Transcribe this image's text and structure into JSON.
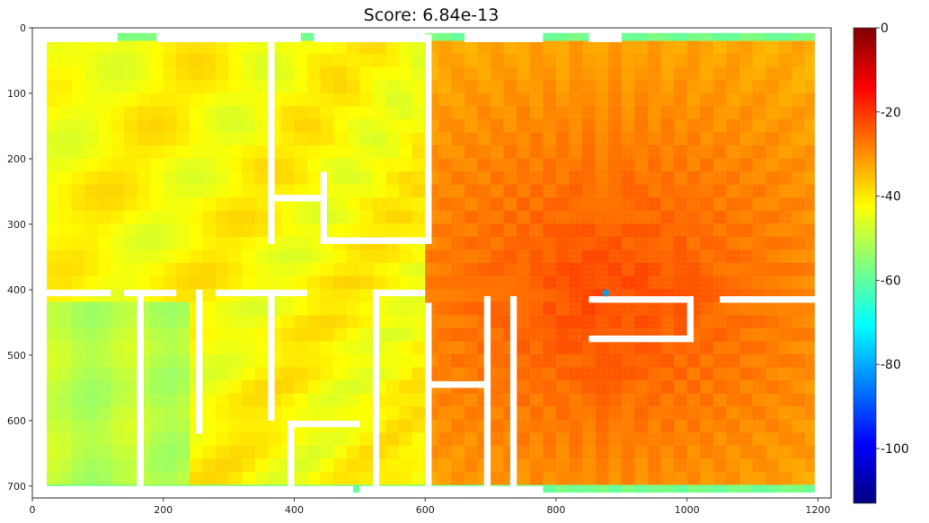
{
  "chart_data": {
    "type": "heatmap",
    "title": "Score: 6.84e-13",
    "x_ticks": [
      0,
      200,
      400,
      600,
      800,
      1000,
      1200
    ],
    "y_ticks": [
      0,
      100,
      200,
      300,
      400,
      500,
      600,
      700
    ],
    "xlim": [
      0,
      1220
    ],
    "ylim": [
      718,
      0
    ],
    "colorbar": {
      "colormap": "jet",
      "range": [
        -113,
        0
      ],
      "ticks": [
        0,
        -20,
        -40,
        -60,
        -80,
        -100
      ],
      "tick_labels": [
        "0",
        "-20",
        "-40",
        "-60",
        "-80",
        "-100"
      ]
    },
    "source_point": {
      "x": 876,
      "y": 405,
      "color": "#1f9ad6"
    },
    "field_levels": {
      "near_source": -22,
      "right_half": -28,
      "left_half": -42,
      "bottom_left_rooms": -50,
      "border": -58
    },
    "walls": [
      [
        0,
        0,
        1220,
        8
      ],
      [
        0,
        710,
        1220,
        718
      ],
      [
        0,
        0,
        8,
        718
      ],
      [
        1212,
        0,
        1220,
        718
      ],
      [
        5,
        5,
        130,
        22
      ],
      [
        190,
        5,
        410,
        22
      ],
      [
        430,
        5,
        600,
        22
      ],
      [
        660,
        5,
        780,
        22
      ],
      [
        850,
        5,
        900,
        22
      ],
      [
        5,
        700,
        490,
        718
      ],
      [
        500,
        700,
        780,
        718
      ],
      [
        5,
        5,
        22,
        718
      ],
      [
        1195,
        5,
        1215,
        718
      ],
      [
        360,
        10,
        370,
        330
      ],
      [
        600,
        10,
        610,
        330
      ],
      [
        360,
        255,
        440,
        265
      ],
      [
        440,
        320,
        610,
        330
      ],
      [
        440,
        220,
        450,
        330
      ],
      [
        5,
        400,
        120,
        410
      ],
      [
        140,
        400,
        220,
        410
      ],
      [
        280,
        400,
        420,
        410
      ],
      [
        520,
        400,
        600,
        410
      ],
      [
        160,
        400,
        170,
        700
      ],
      [
        250,
        400,
        260,
        620
      ],
      [
        360,
        400,
        370,
        600
      ],
      [
        520,
        400,
        530,
        700
      ],
      [
        600,
        420,
        610,
        700
      ],
      [
        690,
        410,
        700,
        700
      ],
      [
        730,
        410,
        740,
        700
      ],
      [
        390,
        600,
        500,
        610
      ],
      [
        390,
        600,
        400,
        700
      ],
      [
        850,
        410,
        1000,
        420
      ],
      [
        1000,
        410,
        1010,
        470
      ],
      [
        850,
        470,
        1010,
        480
      ],
      [
        1050,
        410,
        1200,
        420
      ],
      [
        600,
        540,
        700,
        550
      ]
    ]
  }
}
